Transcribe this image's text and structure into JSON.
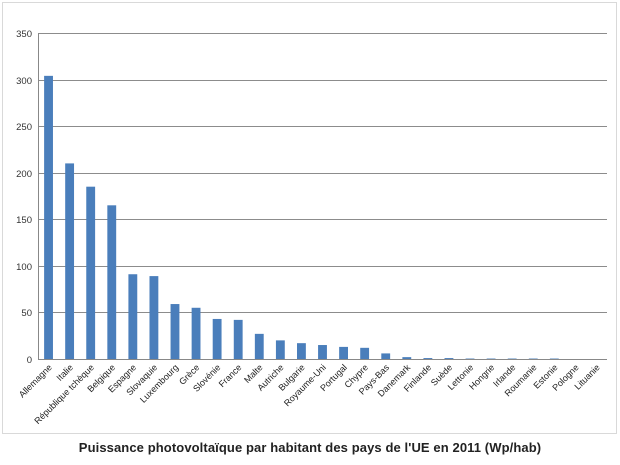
{
  "chart_data": {
    "type": "bar",
    "title": "Puissance photovoltaïque par habitant des pays de l'UE en 2011 (Wp/hab)",
    "xlabel": "",
    "ylabel": "",
    "ylim": [
      0,
      350
    ],
    "yticks": [
      0,
      50,
      100,
      150,
      200,
      250,
      300,
      350
    ],
    "grid": true,
    "legend": "none",
    "bar_color": "#4a7ebb",
    "categories": [
      "Allemagne",
      "Italie",
      "République tchèque",
      "Belgique",
      "Espagne",
      "Slovaquie",
      "Luxembourg",
      "Grèce",
      "Slovénie",
      "France",
      "Malte",
      "Autriche",
      "Bulgarie",
      "Royaume-Uni",
      "Portugal",
      "Chypre",
      "Pays-Bas",
      "Danemark",
      "Finlande",
      "Suède",
      "Lettonie",
      "Hongrie",
      "Irlande",
      "Roumanie",
      "Estonie",
      "Pologne",
      "Lituanie"
    ],
    "values": [
      304,
      210,
      185,
      165,
      91,
      89,
      59,
      55,
      43,
      42,
      27,
      20,
      17,
      15,
      13,
      12,
      6,
      2,
      1,
      1,
      0.5,
      0.5,
      0.5,
      0.5,
      0.5,
      0,
      0
    ]
  }
}
